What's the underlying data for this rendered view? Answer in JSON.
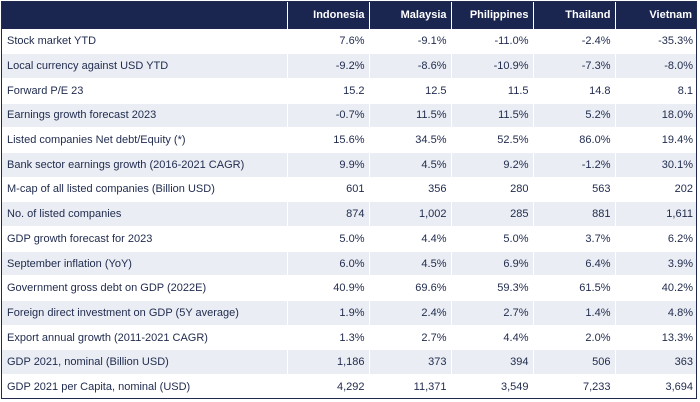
{
  "table": {
    "columns": [
      "",
      "Indonesia",
      "Malaysia",
      "Philippines",
      "Thailand",
      "Vietnam"
    ],
    "rows": [
      {
        "label": "Stock market YTD",
        "values": [
          "7.6%",
          "-9.1%",
          "-11.0%",
          "-2.4%",
          "-35.3%"
        ]
      },
      {
        "label": "Local currency against USD YTD",
        "values": [
          "-9.2%",
          "-8.6%",
          "-10.9%",
          "-7.3%",
          "-8.0%"
        ]
      },
      {
        "label": "Forward P/E 23",
        "values": [
          "15.2",
          "12.5",
          "11.5",
          "14.8",
          "8.1"
        ]
      },
      {
        "label": "Earnings growth forecast 2023",
        "values": [
          "-0.7%",
          "11.5%",
          "11.5%",
          "5.2%",
          "18.0%"
        ]
      },
      {
        "label": "Listed companies Net debt/Equity (*)",
        "values": [
          "15.6%",
          "34.5%",
          "52.5%",
          "86.0%",
          "19.4%"
        ]
      },
      {
        "label": "Bank sector earnings growth (2016-2021 CAGR)",
        "values": [
          "9.9%",
          "4.5%",
          "9.2%",
          "-1.2%",
          "30.1%"
        ]
      },
      {
        "label": "M-cap of all listed companies (Billion USD)",
        "values": [
          "601",
          "356",
          "280",
          "563",
          "202"
        ]
      },
      {
        "label": "No. of  listed companies",
        "values": [
          "874",
          "1,002",
          "285",
          "881",
          "1,611"
        ]
      },
      {
        "label": "GDP growth forecast for 2023",
        "values": [
          "5.0%",
          "4.4%",
          "5.0%",
          "3.7%",
          "6.2%"
        ]
      },
      {
        "label": "September inflation (YoY)",
        "values": [
          "6.0%",
          "4.5%",
          "6.9%",
          "6.4%",
          "3.9%"
        ]
      },
      {
        "label": "Government gross debt on GDP (2022E)",
        "values": [
          "40.9%",
          "69.6%",
          "59.3%",
          "61.5%",
          "40.2%"
        ]
      },
      {
        "label": "Foreign direct investment on GDP  (5Y average)",
        "values": [
          "1.9%",
          "2.4%",
          "2.7%",
          "1.4%",
          "4.8%"
        ]
      },
      {
        "label": "Export annual growth (2011-2021 CAGR)",
        "values": [
          "1.3%",
          "2.7%",
          "4.4%",
          "2.0%",
          "13.3%"
        ]
      },
      {
        "label": "GDP 2021, nominal (Billion USD)",
        "values": [
          "1,186",
          "373",
          "394",
          "506",
          "363"
        ]
      },
      {
        "label": "GDP 2021 per Capita, nominal (USD)",
        "values": [
          "4,292",
          "11,371",
          "3,549",
          "7,233",
          "3,694"
        ]
      }
    ]
  }
}
